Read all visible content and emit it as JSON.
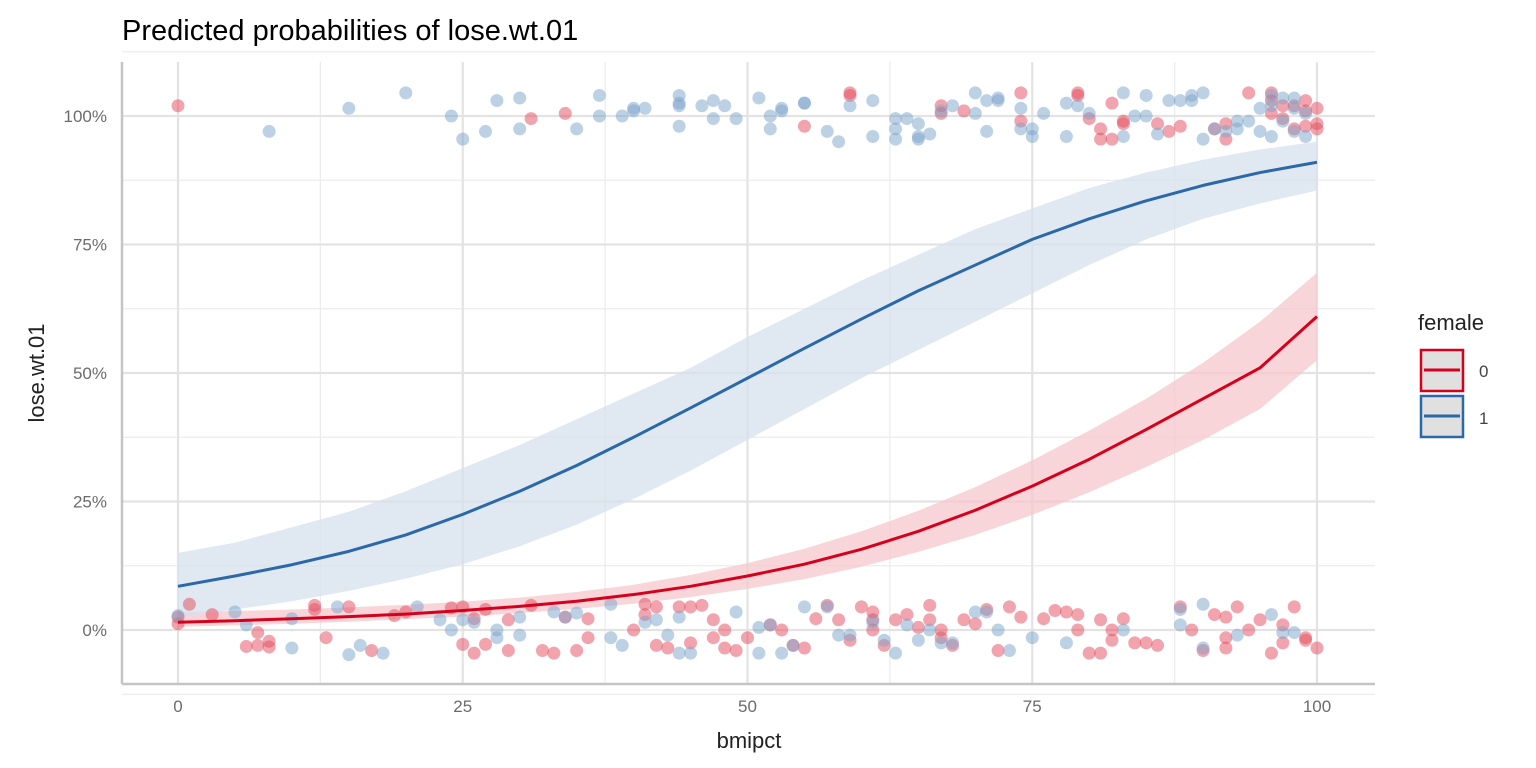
{
  "chart_data": {
    "type": "line",
    "title": "Predicted probabilities of lose.wt.01",
    "xlabel": "bmipct",
    "ylabel": "lose.wt.01",
    "xlim": [
      -5,
      104
    ],
    "ylim": [
      -0.105,
      1.1
    ],
    "x_ticks": [
      0,
      25,
      50,
      75,
      100
    ],
    "x_tick_labels": [
      "0",
      "25",
      "50",
      "75",
      "100"
    ],
    "y_ticks": [
      0,
      0.25,
      0.5,
      0.75,
      1.0
    ],
    "y_tick_labels": [
      "0%",
      "25%",
      "50%",
      "75%",
      "100%"
    ],
    "grid": true,
    "legend": {
      "title": "female",
      "position": "right",
      "entries": [
        {
          "label": "0",
          "color": "#d7001c"
        },
        {
          "label": "1",
          "color": "#2b68a8"
        }
      ]
    },
    "series": [
      {
        "name": "0",
        "color": "#d7001c",
        "ribbon_color": "#f4c7cc",
        "x": [
          0,
          5,
          10,
          15,
          20,
          25,
          30,
          35,
          40,
          45,
          50,
          55,
          60,
          65,
          70,
          75,
          80,
          85,
          90,
          95,
          100
        ],
        "y": [
          0.015,
          0.018,
          0.022,
          0.026,
          0.031,
          0.038,
          0.046,
          0.056,
          0.069,
          0.085,
          0.105,
          0.128,
          0.157,
          0.192,
          0.233,
          0.28,
          0.332,
          0.39,
          0.45,
          0.51,
          0.61
        ],
        "ci_low": [
          0.006,
          0.009,
          0.012,
          0.016,
          0.021,
          0.026,
          0.033,
          0.041,
          0.051,
          0.064,
          0.08,
          0.099,
          0.123,
          0.152,
          0.185,
          0.224,
          0.268,
          0.317,
          0.37,
          0.43,
          0.525
        ],
        "ci_high": [
          0.035,
          0.037,
          0.04,
          0.044,
          0.049,
          0.055,
          0.063,
          0.074,
          0.088,
          0.107,
          0.13,
          0.158,
          0.192,
          0.232,
          0.278,
          0.33,
          0.388,
          0.45,
          0.52,
          0.6,
          0.695
        ]
      },
      {
        "name": "1",
        "color": "#2b68a8",
        "ribbon_color": "#d6e0ec",
        "x": [
          0,
          5,
          10,
          15,
          20,
          25,
          30,
          35,
          40,
          45,
          50,
          55,
          60,
          65,
          70,
          75,
          80,
          85,
          90,
          95,
          100
        ],
        "y": [
          0.085,
          0.105,
          0.127,
          0.153,
          0.185,
          0.225,
          0.27,
          0.32,
          0.375,
          0.432,
          0.49,
          0.548,
          0.605,
          0.66,
          0.71,
          0.76,
          0.8,
          0.835,
          0.865,
          0.89,
          0.91
        ],
        "ci_low": [
          0.025,
          0.04,
          0.056,
          0.076,
          0.1,
          0.128,
          0.163,
          0.205,
          0.255,
          0.31,
          0.37,
          0.43,
          0.49,
          0.545,
          0.6,
          0.655,
          0.71,
          0.76,
          0.8,
          0.83,
          0.855
        ],
        "ci_high": [
          0.15,
          0.17,
          0.2,
          0.23,
          0.27,
          0.315,
          0.36,
          0.41,
          0.46,
          0.51,
          0.57,
          0.625,
          0.68,
          0.73,
          0.78,
          0.82,
          0.86,
          0.89,
          0.915,
          0.935,
          0.95
        ]
      }
    ],
    "points": {
      "female_0": [
        [
          0,
          1.02
        ],
        [
          31,
          0.995
        ],
        [
          34,
          1.005
        ],
        [
          55,
          0.98
        ],
        [
          59,
          1.045
        ],
        [
          59,
          1.04
        ],
        [
          67,
          1.02
        ],
        [
          67,
          1.005
        ],
        [
          69,
          1.01
        ],
        [
          74,
          1.045
        ],
        [
          74,
          0.99
        ],
        [
          79,
          1.045
        ],
        [
          79,
          1.04
        ],
        [
          80,
          0.995
        ],
        [
          81,
          0.975
        ],
        [
          81,
          0.955
        ],
        [
          82,
          0.955
        ],
        [
          82,
          1.025
        ],
        [
          83,
          0.985
        ],
        [
          83,
          0.99
        ],
        [
          86,
          0.985
        ],
        [
          87,
          0.97
        ],
        [
          88,
          0.98
        ],
        [
          91,
          0.975
        ],
        [
          92,
          0.955
        ],
        [
          92,
          0.985
        ],
        [
          94,
          1.045
        ],
        [
          96,
          1.045
        ],
        [
          96,
          1.03
        ],
        [
          96,
          1.005
        ],
        [
          97,
          1.02
        ],
        [
          97,
          0.995
        ],
        [
          98,
          1.02
        ],
        [
          98,
          0.975
        ],
        [
          99,
          1.03
        ],
        [
          99,
          1.01
        ],
        [
          99,
          0.98
        ],
        [
          100,
          1.015
        ],
        [
          100,
          0.985
        ],
        [
          100,
          0.975
        ],
        [
          0,
          0.025
        ],
        [
          0,
          0.012
        ],
        [
          1,
          0.05
        ],
        [
          3,
          0.03
        ],
        [
          6,
          -0.032
        ],
        [
          7,
          -0.03
        ],
        [
          7,
          -0.005
        ],
        [
          8,
          -0.022
        ],
        [
          8,
          -0.033
        ],
        [
          12,
          0.048
        ],
        [
          12,
          0.04
        ],
        [
          13,
          -0.015
        ],
        [
          15,
          0.045
        ],
        [
          17,
          -0.04
        ],
        [
          19,
          0.028
        ],
        [
          20,
          0.035
        ],
        [
          24,
          0.043
        ],
        [
          25,
          0.045
        ],
        [
          25,
          -0.028
        ],
        [
          26,
          -0.045
        ],
        [
          26,
          0.022
        ],
        [
          27,
          -0.028
        ],
        [
          27,
          0.04
        ],
        [
          29,
          -0.04
        ],
        [
          29,
          0.02
        ],
        [
          31,
          0.048
        ],
        [
          32,
          -0.04
        ],
        [
          33,
          -0.045
        ],
        [
          34,
          0.025
        ],
        [
          35,
          -0.04
        ],
        [
          36,
          0.022
        ],
        [
          36,
          -0.015
        ],
        [
          40,
          0.0
        ],
        [
          41,
          0.05
        ],
        [
          41,
          0.03
        ],
        [
          42,
          0.045
        ],
        [
          42,
          -0.03
        ],
        [
          43,
          -0.035
        ],
        [
          44,
          0.045
        ],
        [
          45,
          -0.025
        ],
        [
          45,
          0.045
        ],
        [
          46,
          0.048
        ],
        [
          47,
          0.02
        ],
        [
          47,
          -0.015
        ],
        [
          48,
          0.0
        ],
        [
          48,
          -0.035
        ],
        [
          49,
          -0.04
        ],
        [
          50,
          -0.015
        ],
        [
          52,
          0.01
        ],
        [
          53,
          0.0
        ],
        [
          54,
          -0.03
        ],
        [
          55,
          -0.035
        ],
        [
          56,
          0.022
        ],
        [
          57,
          0.048
        ],
        [
          58,
          0.02
        ],
        [
          59,
          -0.02
        ],
        [
          60,
          0.045
        ],
        [
          61,
          0.035
        ],
        [
          61,
          0.02
        ],
        [
          61,
          0.0
        ],
        [
          62,
          -0.03
        ],
        [
          63,
          0.02
        ],
        [
          64,
          0.03
        ],
        [
          65,
          0.005
        ],
        [
          66,
          0.048
        ],
        [
          66,
          0.02
        ],
        [
          67,
          -0.015
        ],
        [
          67,
          0.0
        ],
        [
          68,
          -0.03
        ],
        [
          69,
          0.02
        ],
        [
          70,
          0.012
        ],
        [
          71,
          0.04
        ],
        [
          72,
          -0.04
        ],
        [
          73,
          0.045
        ],
        [
          74,
          0.025
        ],
        [
          76,
          0.022
        ],
        [
          77,
          0.038
        ],
        [
          78,
          0.035
        ],
        [
          79,
          0.03
        ],
        [
          79,
          0.0
        ],
        [
          80,
          -0.045
        ],
        [
          81,
          -0.045
        ],
        [
          81,
          0.02
        ],
        [
          82,
          0.0
        ],
        [
          82,
          -0.02
        ],
        [
          83,
          0.022
        ],
        [
          84,
          -0.025
        ],
        [
          85,
          -0.025
        ],
        [
          86,
          -0.03
        ],
        [
          88,
          0.045
        ],
        [
          89,
          0.0
        ],
        [
          90,
          -0.04
        ],
        [
          91,
          0.03
        ],
        [
          92,
          -0.015
        ],
        [
          92,
          0.025
        ],
        [
          92,
          -0.035
        ],
        [
          93,
          0.045
        ],
        [
          94,
          0.0
        ],
        [
          95,
          0.02
        ],
        [
          96,
          -0.045
        ],
        [
          97,
          0.01
        ],
        [
          97,
          -0.025
        ],
        [
          98,
          0.045
        ],
        [
          99,
          -0.015
        ],
        [
          99,
          -0.02
        ],
        [
          100,
          -0.035
        ]
      ],
      "female_1": [
        [
          8,
          0.97
        ],
        [
          15,
          1.015
        ],
        [
          20,
          1.045
        ],
        [
          24,
          1.0
        ],
        [
          25,
          0.955
        ],
        [
          27,
          0.97
        ],
        [
          28,
          1.03
        ],
        [
          30,
          1.035
        ],
        [
          30,
          0.975
        ],
        [
          35,
          0.975
        ],
        [
          37,
          1.04
        ],
        [
          37,
          1.0
        ],
        [
          39,
          1.0
        ],
        [
          40,
          1.015
        ],
        [
          40,
          1.01
        ],
        [
          41,
          1.015
        ],
        [
          44,
          1.04
        ],
        [
          44,
          1.025
        ],
        [
          44,
          1.02
        ],
        [
          44,
          0.98
        ],
        [
          46,
          1.02
        ],
        [
          47,
          1.03
        ],
        [
          47,
          0.995
        ],
        [
          48,
          1.02
        ],
        [
          49,
          0.995
        ],
        [
          51,
          1.035
        ],
        [
          52,
          1.0
        ],
        [
          52,
          0.975
        ],
        [
          53,
          1.015
        ],
        [
          53,
          1.01
        ],
        [
          55,
          1.025
        ],
        [
          55,
          1.025
        ],
        [
          57,
          0.97
        ],
        [
          58,
          0.95
        ],
        [
          59,
          1.02
        ],
        [
          61,
          1.03
        ],
        [
          61,
          0.96
        ],
        [
          63,
          0.995
        ],
        [
          63,
          0.975
        ],
        [
          63,
          0.955
        ],
        [
          64,
          0.995
        ],
        [
          65,
          0.985
        ],
        [
          65,
          0.96
        ],
        [
          65,
          0.955
        ],
        [
          66,
          0.965
        ],
        [
          67,
          1.01
        ],
        [
          68,
          1.02
        ],
        [
          70,
          1.045
        ],
        [
          70,
          1.005
        ],
        [
          71,
          1.03
        ],
        [
          71,
          0.97
        ],
        [
          72,
          1.035
        ],
        [
          72,
          1.03
        ],
        [
          74,
          1.015
        ],
        [
          74,
          0.975
        ],
        [
          75,
          0.96
        ],
        [
          75,
          0.975
        ],
        [
          76,
          1.005
        ],
        [
          78,
          0.96
        ],
        [
          78,
          1.025
        ],
        [
          79,
          1.02
        ],
        [
          80,
          1.005
        ],
        [
          83,
          1.045
        ],
        [
          83,
          0.96
        ],
        [
          84,
          1.0
        ],
        [
          85,
          1.0
        ],
        [
          85,
          1.04
        ],
        [
          86,
          0.965
        ],
        [
          87,
          1.03
        ],
        [
          88,
          1.03
        ],
        [
          89,
          1.04
        ],
        [
          89,
          1.03
        ],
        [
          90,
          1.045
        ],
        [
          90,
          0.955
        ],
        [
          91,
          0.975
        ],
        [
          92,
          0.97
        ],
        [
          93,
          0.99
        ],
        [
          93,
          0.975
        ],
        [
          94,
          0.99
        ],
        [
          95,
          1.015
        ],
        [
          95,
          0.97
        ],
        [
          96,
          1.04
        ],
        [
          96,
          1.02
        ],
        [
          96,
          0.96
        ],
        [
          97,
          1.035
        ],
        [
          97,
          0.99
        ],
        [
          98,
          1.035
        ],
        [
          98,
          1.015
        ],
        [
          98,
          0.97
        ],
        [
          99,
          1.005
        ],
        [
          99,
          0.96
        ],
        [
          0,
          0.028
        ],
        [
          5,
          0.035
        ],
        [
          6,
          0.01
        ],
        [
          10,
          0.022
        ],
        [
          10,
          -0.035
        ],
        [
          14,
          0.045
        ],
        [
          15,
          -0.048
        ],
        [
          16,
          -0.03
        ],
        [
          18,
          -0.045
        ],
        [
          21,
          0.045
        ],
        [
          23,
          0.02
        ],
        [
          24,
          0.0
        ],
        [
          25,
          0.02
        ],
        [
          26,
          0.015
        ],
        [
          28,
          0.0
        ],
        [
          28,
          -0.015
        ],
        [
          30,
          0.025
        ],
        [
          30,
          -0.01
        ],
        [
          33,
          0.035
        ],
        [
          34,
          0.025
        ],
        [
          35,
          0.033
        ],
        [
          38,
          0.05
        ],
        [
          38,
          -0.015
        ],
        [
          39,
          -0.03
        ],
        [
          41,
          0.015
        ],
        [
          42,
          0.02
        ],
        [
          43,
          -0.01
        ],
        [
          44,
          0.025
        ],
        [
          44,
          -0.045
        ],
        [
          45,
          -0.045
        ],
        [
          49,
          0.035
        ],
        [
          51,
          0.005
        ],
        [
          51,
          -0.045
        ],
        [
          52,
          0.01
        ],
        [
          53,
          -0.045
        ],
        [
          54,
          -0.03
        ],
        [
          55,
          0.045
        ],
        [
          57,
          0.045
        ],
        [
          58,
          -0.01
        ],
        [
          59,
          -0.01
        ],
        [
          61,
          0.015
        ],
        [
          62,
          -0.02
        ],
        [
          63,
          -0.045
        ],
        [
          64,
          0.01
        ],
        [
          65,
          -0.02
        ],
        [
          66,
          0.0
        ],
        [
          67,
          -0.025
        ],
        [
          68,
          -0.025
        ],
        [
          70,
          0.035
        ],
        [
          71,
          0.035
        ],
        [
          72,
          0.0
        ],
        [
          73,
          -0.04
        ],
        [
          75,
          -0.015
        ],
        [
          78,
          -0.025
        ],
        [
          83,
          0.0
        ],
        [
          88,
          0.01
        ],
        [
          88,
          0.04
        ],
        [
          90,
          0.05
        ],
        [
          90,
          -0.035
        ],
        [
          93,
          -0.01
        ],
        [
          96,
          0.03
        ],
        [
          97,
          -0.005
        ],
        [
          98,
          -0.005
        ]
      ]
    }
  }
}
